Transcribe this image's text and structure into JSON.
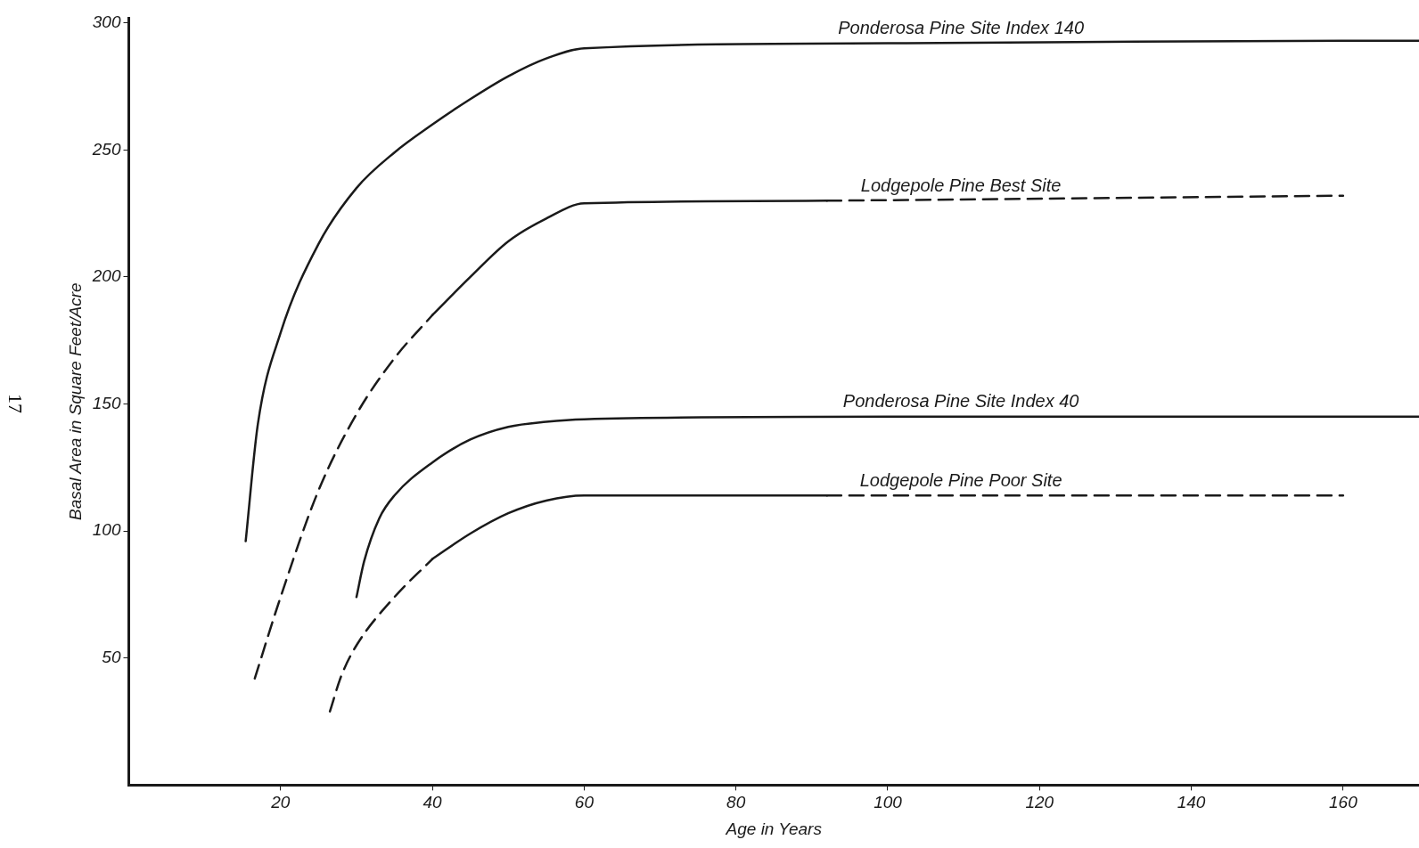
{
  "chart_data": {
    "type": "line",
    "xlabel": "Age in Years",
    "ylabel": "Basal Area in Square Feet/Acre",
    "xlim": [
      0,
      170
    ],
    "ylim": [
      0,
      302
    ],
    "xticks": [
      20,
      40,
      60,
      80,
      100,
      120,
      140,
      160
    ],
    "yticks": [
      50,
      100,
      150,
      200,
      250,
      300
    ],
    "grid": false,
    "legend": false,
    "marker": "none",
    "series": [
      {
        "name": "Ponderosa Pine Site Index 140",
        "color": "#1a1a1a",
        "line_style": "solid",
        "x": [
          15.4,
          17,
          20,
          25,
          30,
          35,
          40,
          45,
          50,
          55,
          60,
          100,
          160,
          170
        ],
        "values": [
          96,
          142,
          178,
          213,
          235,
          249,
          260,
          270,
          279,
          286,
          290,
          292,
          293,
          293
        ]
      },
      {
        "color": "#1a1a1a",
        "line_style": "dashed",
        "x": [
          16.6,
          20,
          25,
          30,
          35,
          40
        ],
        "values": [
          42,
          74,
          116,
          146,
          168,
          185
        ]
      },
      {
        "name": "Lodgepole Pine Best Site",
        "color": "#1a1a1a",
        "line_style": "solid",
        "x": [
          40,
          45,
          50,
          55,
          60,
          92
        ],
        "values": [
          185,
          200,
          214,
          223,
          229,
          230
        ]
      },
      {
        "color": "#1a1a1a",
        "line_style": "dashed",
        "x": [
          92,
          160
        ],
        "values": [
          230,
          232
        ]
      },
      {
        "name": "Ponderosa Pine Site Index 40",
        "color": "#1a1a1a",
        "line_style": "solid",
        "x": [
          30,
          31,
          33,
          35,
          40,
          45,
          50,
          55,
          60,
          100,
          170
        ],
        "values": [
          74,
          88,
          105,
          114,
          127,
          136,
          141,
          143,
          144,
          145,
          145
        ]
      },
      {
        "color": "#1a1a1a",
        "line_style": "dashed",
        "x": [
          26.5,
          28,
          30,
          35,
          40
        ],
        "values": [
          29,
          43,
          55,
          74,
          89
        ]
      },
      {
        "name": "Lodgepole Pine Poor Site",
        "color": "#1a1a1a",
        "line_style": "solid",
        "x": [
          40,
          45,
          50,
          55,
          60,
          92
        ],
        "values": [
          89,
          99,
          107,
          112,
          114,
          114
        ]
      },
      {
        "color": "#1a1a1a",
        "line_style": "dashed",
        "x": [
          92,
          160
        ],
        "values": [
          114,
          114
        ]
      }
    ],
    "annotations": [
      "17"
    ]
  }
}
